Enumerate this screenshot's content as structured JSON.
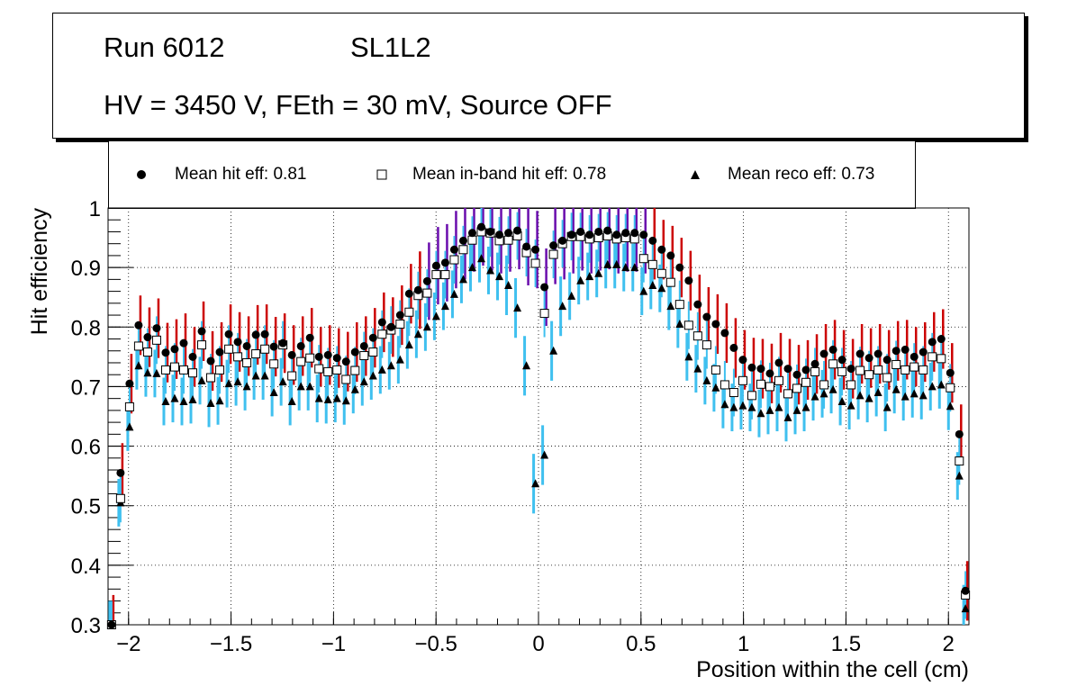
{
  "header": {
    "run": "Run 6012",
    "layer": "SL1L2",
    "conditions": "HV = 3450 V, FEth = 30 mV, Source OFF"
  },
  "legend": {
    "hit": "Mean hit  eff: 0.81",
    "inband": "Mean in-band hit eff: 0.78",
    "reco": "Mean reco eff: 0.73"
  },
  "colors": {
    "hit_err": "#cc0000",
    "hit_err_alt": "#6a0dad",
    "inband_err": "#3fc0ef",
    "marker": "#000000"
  },
  "chart_data": {
    "type": "scatter",
    "xlabel": "Position within the cell (cm)",
    "ylabel": "Hit efficiency",
    "xlim": [
      -2.1,
      2.1
    ],
    "ylim": [
      0.3,
      1.0
    ],
    "grid": true,
    "xticks": [
      -2,
      -1.5,
      -1,
      -0.5,
      0,
      0.5,
      1,
      1.5,
      2
    ],
    "xtick_labels": [
      "−2",
      "−1.5",
      "−1",
      "−0.5",
      "0",
      "0.5",
      "1",
      "1.5",
      "2"
    ],
    "yticks": [
      0.3,
      0.4,
      0.5,
      0.6,
      0.7,
      0.8,
      0.9,
      1.0
    ],
    "ytick_labels": [
      "0.3",
      "0.4",
      "0.5",
      "0.6",
      "0.7",
      "0.8",
      "0.9",
      "1"
    ],
    "x": [
      -2.083,
      -2.039,
      -1.995,
      -1.951,
      -1.907,
      -1.863,
      -1.819,
      -1.775,
      -1.731,
      -1.687,
      -1.643,
      -1.599,
      -1.555,
      -1.511,
      -1.467,
      -1.423,
      -1.379,
      -1.335,
      -1.291,
      -1.247,
      -1.203,
      -1.159,
      -1.115,
      -1.071,
      -1.027,
      -0.983,
      -0.939,
      -0.895,
      -0.851,
      -0.807,
      -0.763,
      -0.719,
      -0.675,
      -0.631,
      -0.587,
      -0.543,
      -0.499,
      -0.455,
      -0.411,
      -0.367,
      -0.323,
      -0.279,
      -0.235,
      -0.191,
      -0.147,
      -0.103,
      -0.059,
      -0.015,
      0.029,
      0.073,
      0.117,
      0.161,
      0.205,
      0.249,
      0.293,
      0.337,
      0.381,
      0.425,
      0.469,
      0.513,
      0.557,
      0.601,
      0.645,
      0.689,
      0.733,
      0.777,
      0.821,
      0.865,
      0.909,
      0.953,
      0.997,
      1.041,
      1.085,
      1.129,
      1.173,
      1.217,
      1.261,
      1.305,
      1.349,
      1.393,
      1.437,
      1.481,
      1.525,
      1.569,
      1.613,
      1.657,
      1.701,
      1.745,
      1.789,
      1.833,
      1.877,
      1.921,
      1.965,
      2.009,
      2.053,
      2.083
    ],
    "series": [
      {
        "name": "Mean hit  eff: 0.81",
        "marker": "circle",
        "values": [
          0.3,
          0.555,
          0.705,
          0.803,
          0.783,
          0.798,
          0.757,
          0.763,
          0.773,
          0.75,
          0.793,
          0.743,
          0.758,
          0.788,
          0.775,
          0.768,
          0.787,
          0.788,
          0.767,
          0.773,
          0.753,
          0.768,
          0.782,
          0.75,
          0.753,
          0.748,
          0.742,
          0.758,
          0.768,
          0.782,
          0.808,
          0.8,
          0.82,
          0.856,
          0.862,
          0.877,
          0.903,
          0.908,
          0.93,
          0.945,
          0.958,
          0.968,
          0.96,
          0.955,
          0.958,
          0.962,
          0.935,
          0.93,
          0.867,
          0.937,
          0.945,
          0.955,
          0.96,
          0.955,
          0.96,
          0.962,
          0.955,
          0.958,
          0.958,
          0.955,
          0.945,
          0.93,
          0.92,
          0.9,
          0.878,
          0.838,
          0.817,
          0.805,
          0.79,
          0.765,
          0.745,
          0.732,
          0.73,
          0.722,
          0.74,
          0.73,
          0.72,
          0.728,
          0.738,
          0.755,
          0.762,
          0.745,
          0.73,
          0.755,
          0.748,
          0.755,
          0.745,
          0.76,
          0.762,
          0.75,
          0.758,
          0.775,
          0.78,
          0.723,
          0.62,
          0.357
        ]
      },
      {
        "name": "Mean in-band hit eff: 0.78",
        "marker": "open-square",
        "values": [
          0.3,
          0.512,
          0.666,
          0.768,
          0.758,
          0.778,
          0.728,
          0.733,
          0.728,
          0.723,
          0.77,
          0.715,
          0.728,
          0.763,
          0.75,
          0.74,
          0.755,
          0.763,
          0.738,
          0.77,
          0.718,
          0.742,
          0.748,
          0.73,
          0.725,
          0.728,
          0.712,
          0.727,
          0.752,
          0.758,
          0.788,
          0.795,
          0.805,
          0.825,
          0.853,
          0.857,
          0.888,
          0.888,
          0.913,
          0.93,
          0.946,
          0.96,
          0.958,
          0.945,
          0.946,
          0.953,
          0.925,
          0.907,
          0.823,
          0.922,
          0.94,
          0.952,
          0.952,
          0.948,
          0.95,
          0.953,
          0.948,
          0.95,
          0.948,
          0.915,
          0.905,
          0.89,
          0.875,
          0.838,
          0.803,
          0.785,
          0.77,
          0.728,
          0.703,
          0.69,
          0.71,
          0.685,
          0.704,
          0.7,
          0.71,
          0.688,
          0.697,
          0.707,
          0.725,
          0.703,
          0.738,
          0.725,
          0.703,
          0.727,
          0.72,
          0.728,
          0.715,
          0.737,
          0.728,
          0.733,
          0.728,
          0.75,
          0.747,
          0.698,
          0.575,
          0.35
        ]
      },
      {
        "name": "Mean reco eff: 0.73",
        "marker": "filled-triangle",
        "values": [
          0.3,
          0.505,
          0.632,
          0.735,
          0.723,
          0.722,
          0.675,
          0.68,
          0.675,
          0.678,
          0.71,
          0.672,
          0.676,
          0.705,
          0.708,
          0.7,
          0.718,
          0.718,
          0.69,
          0.708,
          0.675,
          0.7,
          0.7,
          0.68,
          0.678,
          0.68,
          0.676,
          0.695,
          0.708,
          0.718,
          0.728,
          0.735,
          0.745,
          0.77,
          0.788,
          0.8,
          0.818,
          0.835,
          0.855,
          0.88,
          0.9,
          0.915,
          0.895,
          0.885,
          0.87,
          0.832,
          0.735,
          0.537,
          0.585,
          0.76,
          0.835,
          0.852,
          0.878,
          0.885,
          0.89,
          0.905,
          0.905,
          0.9,
          0.9,
          0.86,
          0.87,
          0.865,
          0.835,
          0.805,
          0.75,
          0.73,
          0.71,
          0.698,
          0.67,
          0.665,
          0.668,
          0.665,
          0.655,
          0.66,
          0.665,
          0.648,
          0.66,
          0.665,
          0.683,
          0.688,
          0.695,
          0.675,
          0.668,
          0.685,
          0.68,
          0.69,
          0.665,
          0.695,
          0.683,
          0.688,
          0.685,
          0.7,
          0.703,
          0.667,
          0.55,
          0.327
        ]
      }
    ]
  }
}
